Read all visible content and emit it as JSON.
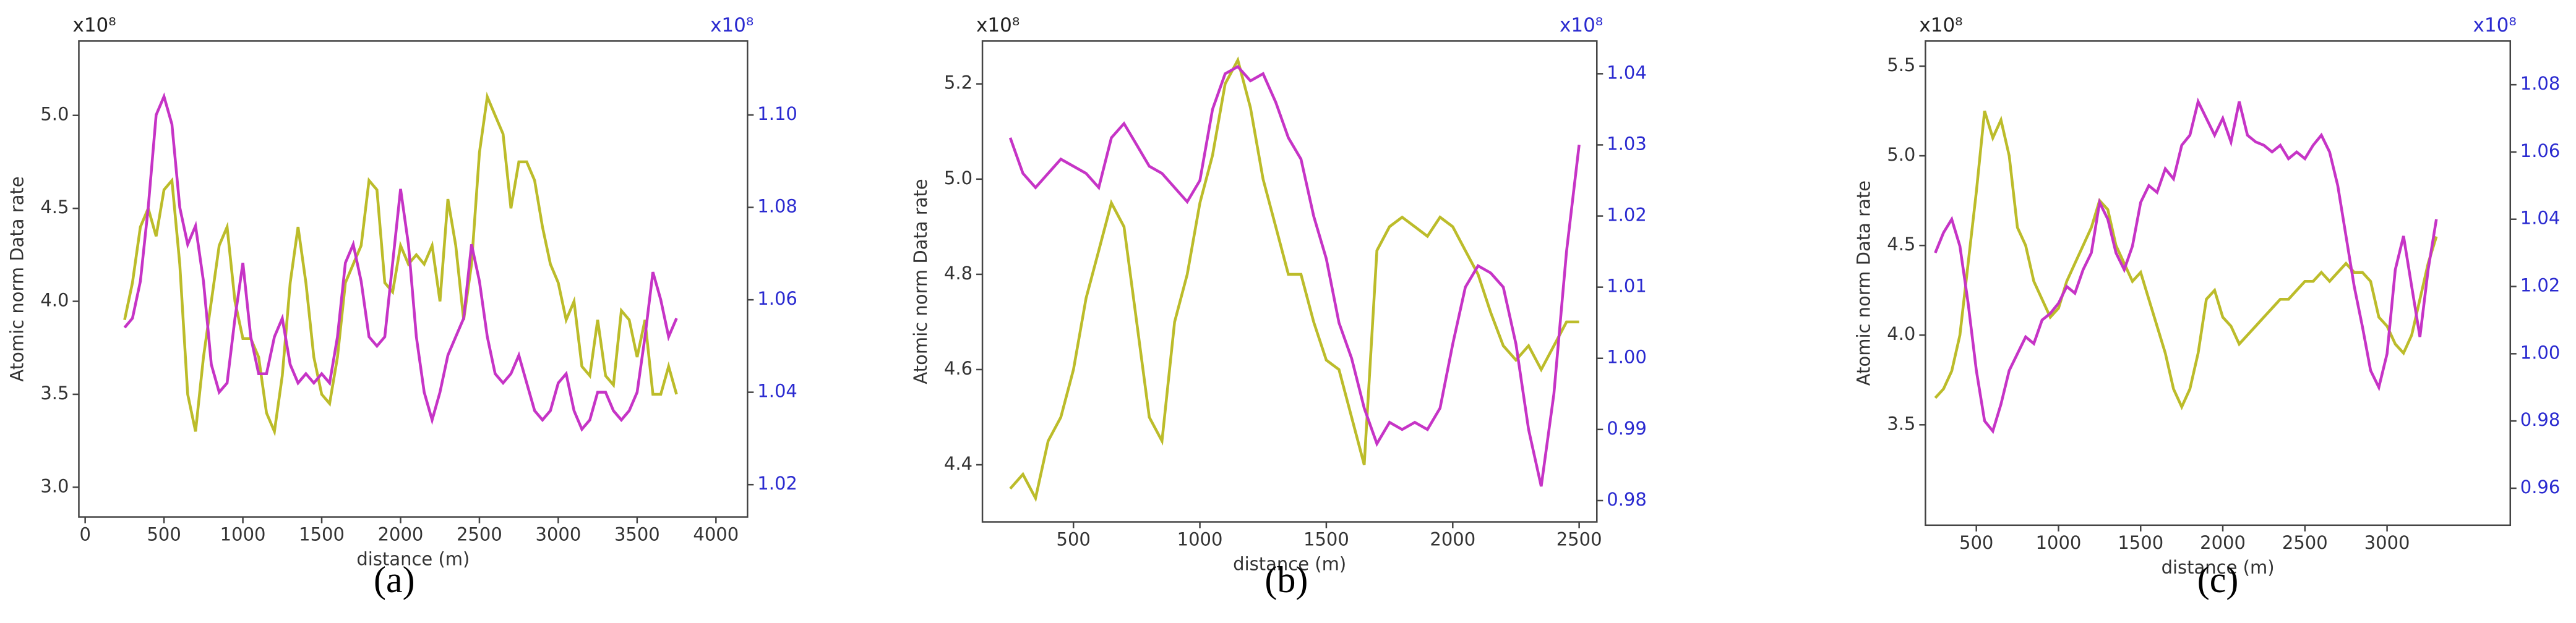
{
  "chart_data": [
    {
      "type": "line",
      "caption": "(a)",
      "y_multiplier": "x10⁸",
      "y2_multiplier": "x10⁸",
      "y_label": "Atomic norm Data rate",
      "x_label": "distance (m)",
      "grid": false,
      "xlim": [
        -40,
        4200
      ],
      "xticks": [
        0,
        500,
        1000,
        1500,
        2000,
        2500,
        3000,
        3500,
        4000
      ],
      "ylim": [
        2.84,
        5.4
      ],
      "yticks": [
        {
          "value": 3,
          "label": "3.0"
        },
        3.5,
        {
          "value": 4,
          "label": "4.0"
        },
        4.5,
        {
          "value": 5,
          "label": "5.0"
        }
      ],
      "y2lim": [
        1.013,
        1.116
      ],
      "y2ticks": [
        1.02,
        1.04,
        1.06,
        1.08,
        {
          "value": 1.1,
          "label": "1.10"
        }
      ],
      "y2_color": "#2a2ad0",
      "x": [
        250,
        300,
        350,
        400,
        450,
        500,
        550,
        600,
        650,
        700,
        750,
        800,
        850,
        900,
        950,
        1000,
        1050,
        1100,
        1150,
        1200,
        1250,
        1300,
        1350,
        1400,
        1450,
        1500,
        1550,
        1600,
        1650,
        1700,
        1750,
        1800,
        1850,
        1900,
        1950,
        2000,
        2050,
        2100,
        2150,
        2200,
        2250,
        2300,
        2350,
        2400,
        2450,
        2500,
        2550,
        2600,
        2650,
        2700,
        2750,
        2800,
        2850,
        2900,
        2950,
        3000,
        3050,
        3100,
        3150,
        3200,
        3250,
        3300,
        3350,
        3400,
        3450,
        3500,
        3550,
        3600,
        3650,
        3700,
        3750
      ],
      "series": [
        {
          "color": "#bcbc2a",
          "axis": "y",
          "values": [
            3.9,
            4.1,
            4.4,
            4.5,
            4.35,
            4.6,
            4.65,
            4.2,
            3.5,
            3.3,
            3.7,
            4.0,
            4.3,
            4.4,
            4.0,
            3.8,
            3.8,
            3.7,
            3.4,
            3.3,
            3.6,
            4.1,
            4.4,
            4.1,
            3.7,
            3.5,
            3.45,
            3.7,
            4.1,
            4.2,
            4.3,
            4.65,
            4.6,
            4.1,
            4.05,
            4.3,
            4.2,
            4.25,
            4.2,
            4.3,
            4.0,
            4.55,
            4.3,
            3.9,
            4.2,
            4.8,
            5.1,
            5.0,
            4.9,
            4.5,
            4.75,
            4.75,
            4.65,
            4.4,
            4.2,
            4.1,
            3.9,
            4.0,
            3.65,
            3.6,
            3.9,
            3.6,
            3.55,
            3.95,
            3.9,
            3.7,
            3.9,
            3.5,
            3.5,
            3.65,
            3.5
          ]
        },
        {
          "color": "#c634c6",
          "axis": "y2",
          "values": [
            1.054,
            1.056,
            1.064,
            1.08,
            1.1,
            1.104,
            1.098,
            1.08,
            1.072,
            1.076,
            1.064,
            1.046,
            1.04,
            1.042,
            1.056,
            1.068,
            1.052,
            1.044,
            1.044,
            1.052,
            1.056,
            1.046,
            1.042,
            1.044,
            1.042,
            1.044,
            1.042,
            1.052,
            1.068,
            1.072,
            1.064,
            1.052,
            1.05,
            1.052,
            1.068,
            1.084,
            1.072,
            1.052,
            1.04,
            1.034,
            1.04,
            1.048,
            1.052,
            1.056,
            1.072,
            1.064,
            1.052,
            1.044,
            1.042,
            1.044,
            1.048,
            1.042,
            1.036,
            1.034,
            1.036,
            1.042,
            1.044,
            1.036,
            1.032,
            1.034,
            1.04,
            1.04,
            1.036,
            1.034,
            1.036,
            1.04,
            1.052,
            1.066,
            1.06,
            1.052,
            1.056
          ]
        }
      ]
    },
    {
      "type": "line",
      "caption": "(b)",
      "y_multiplier": "x10⁸",
      "y2_multiplier": "x10⁸",
      "y_label": "Atomic norm Data rate",
      "x_label": "distance (m)",
      "grid": false,
      "xlim": [
        140,
        2570
      ],
      "xticks": [
        500,
        1000,
        1500,
        2000,
        2500
      ],
      "ylim": [
        4.28,
        5.29
      ],
      "yticks": [
        4.4,
        4.6,
        4.8,
        {
          "value": 5,
          "label": "5.0"
        },
        5.2
      ],
      "y2lim": [
        0.977,
        1.0446
      ],
      "y2ticks": [
        0.98,
        0.99,
        {
          "value": 1,
          "label": "1.00"
        },
        1.01,
        1.02,
        1.03,
        1.04
      ],
      "y2_color": "#2a2ad0",
      "x": [
        250,
        300,
        350,
        400,
        450,
        500,
        550,
        600,
        650,
        700,
        750,
        800,
        850,
        900,
        950,
        1000,
        1050,
        1100,
        1150,
        1200,
        1250,
        1300,
        1350,
        1400,
        1450,
        1500,
        1550,
        1600,
        1650,
        1700,
        1750,
        1800,
        1850,
        1900,
        1950,
        2000,
        2050,
        2100,
        2150,
        2200,
        2250,
        2300,
        2350,
        2400,
        2450,
        2500
      ],
      "series": [
        {
          "color": "#bcbc2a",
          "axis": "y",
          "values": [
            4.35,
            4.38,
            4.33,
            4.45,
            4.5,
            4.6,
            4.75,
            4.85,
            4.95,
            4.9,
            4.7,
            4.5,
            4.45,
            4.7,
            4.8,
            4.95,
            5.05,
            5.2,
            5.25,
            5.15,
            5.0,
            4.9,
            4.8,
            4.8,
            4.7,
            4.62,
            4.6,
            4.5,
            4.4,
            4.85,
            4.9,
            4.92,
            4.9,
            4.88,
            4.92,
            4.9,
            4.85,
            4.8,
            4.72,
            4.65,
            4.62,
            4.65,
            4.6,
            4.65,
            4.7,
            4.7
          ]
        },
        {
          "color": "#c634c6",
          "axis": "y2",
          "values": [
            1.031,
            1.026,
            1.024,
            1.026,
            1.028,
            1.027,
            1.026,
            1.024,
            1.031,
            1.033,
            1.03,
            1.027,
            1.026,
            1.024,
            1.022,
            1.025,
            1.035,
            1.04,
            1.041,
            1.039,
            1.04,
            1.036,
            1.031,
            1.028,
            1.02,
            1.014,
            1.005,
            1.0,
            0.993,
            0.988,
            0.991,
            0.99,
            0.991,
            0.99,
            0.993,
            1.002,
            1.01,
            1.013,
            1.012,
            1.01,
            1.002,
            0.99,
            0.982,
            0.995,
            1.015,
            1.03
          ]
        }
      ]
    },
    {
      "type": "line",
      "caption": "(c)",
      "y_multiplier": "x10⁸",
      "y2_multiplier": "x10⁸",
      "y_label": "Atomic norm Data rate",
      "x_label": "distance (m)",
      "grid": false,
      "xlim": [
        190,
        3750
      ],
      "xticks": [
        500,
        1000,
        1500,
        2000,
        2500,
        3000
      ],
      "ylim": [
        2.94,
        5.64
      ],
      "yticks": [
        3.5,
        {
          "value": 4,
          "label": "4.0"
        },
        4.5,
        {
          "value": 5,
          "label": "5.0"
        },
        5.5
      ],
      "y2lim": [
        0.949,
        1.093
      ],
      "y2ticks": [
        0.96,
        0.98,
        {
          "value": 1,
          "label": "1.00"
        },
        1.02,
        1.04,
        1.06,
        1.08
      ],
      "y2_color": "#2a2ad0",
      "x": [
        250,
        300,
        350,
        400,
        450,
        500,
        550,
        600,
        650,
        700,
        750,
        800,
        850,
        900,
        950,
        1000,
        1050,
        1100,
        1150,
        1200,
        1250,
        1300,
        1350,
        1400,
        1450,
        1500,
        1550,
        1600,
        1650,
        1700,
        1750,
        1800,
        1850,
        1900,
        1950,
        2000,
        2050,
        2100,
        2150,
        2200,
        2250,
        2300,
        2350,
        2400,
        2450,
        2500,
        2550,
        2600,
        2650,
        2700,
        2750,
        2800,
        2850,
        2900,
        2950,
        3000,
        3050,
        3100,
        3150,
        3200,
        3250,
        3300
      ],
      "series": [
        {
          "color": "#bcbc2a",
          "axis": "y",
          "values": [
            3.65,
            3.7,
            3.8,
            4.0,
            4.4,
            4.8,
            5.25,
            5.1,
            5.2,
            5.0,
            4.6,
            4.5,
            4.3,
            4.2,
            4.1,
            4.15,
            4.3,
            4.4,
            4.5,
            4.6,
            4.75,
            4.7,
            4.5,
            4.4,
            4.3,
            4.35,
            4.2,
            4.05,
            3.9,
            3.7,
            3.6,
            3.7,
            3.9,
            4.2,
            4.25,
            4.1,
            4.05,
            3.95,
            4.0,
            4.05,
            4.1,
            4.15,
            4.2,
            4.2,
            4.25,
            4.3,
            4.3,
            4.35,
            4.3,
            4.35,
            4.4,
            4.35,
            4.35,
            4.3,
            4.1,
            4.05,
            3.95,
            3.9,
            4.0,
            4.2,
            4.4,
            4.55
          ]
        },
        {
          "color": "#c634c6",
          "axis": "y2",
          "values": [
            1.03,
            1.036,
            1.04,
            1.032,
            1.015,
            0.995,
            0.98,
            0.977,
            0.985,
            0.995,
            1.0,
            1.005,
            1.003,
            1.01,
            1.012,
            1.015,
            1.02,
            1.018,
            1.025,
            1.03,
            1.045,
            1.04,
            1.03,
            1.025,
            1.032,
            1.045,
            1.05,
            1.048,
            1.055,
            1.052,
            1.062,
            1.065,
            1.075,
            1.07,
            1.065,
            1.07,
            1.063,
            1.075,
            1.065,
            1.063,
            1.062,
            1.06,
            1.062,
            1.058,
            1.06,
            1.058,
            1.062,
            1.065,
            1.06,
            1.05,
            1.035,
            1.02,
            1.008,
            0.995,
            0.99,
            1.0,
            1.025,
            1.035,
            1.02,
            1.005,
            1.025,
            1.04
          ]
        }
      ]
    }
  ]
}
